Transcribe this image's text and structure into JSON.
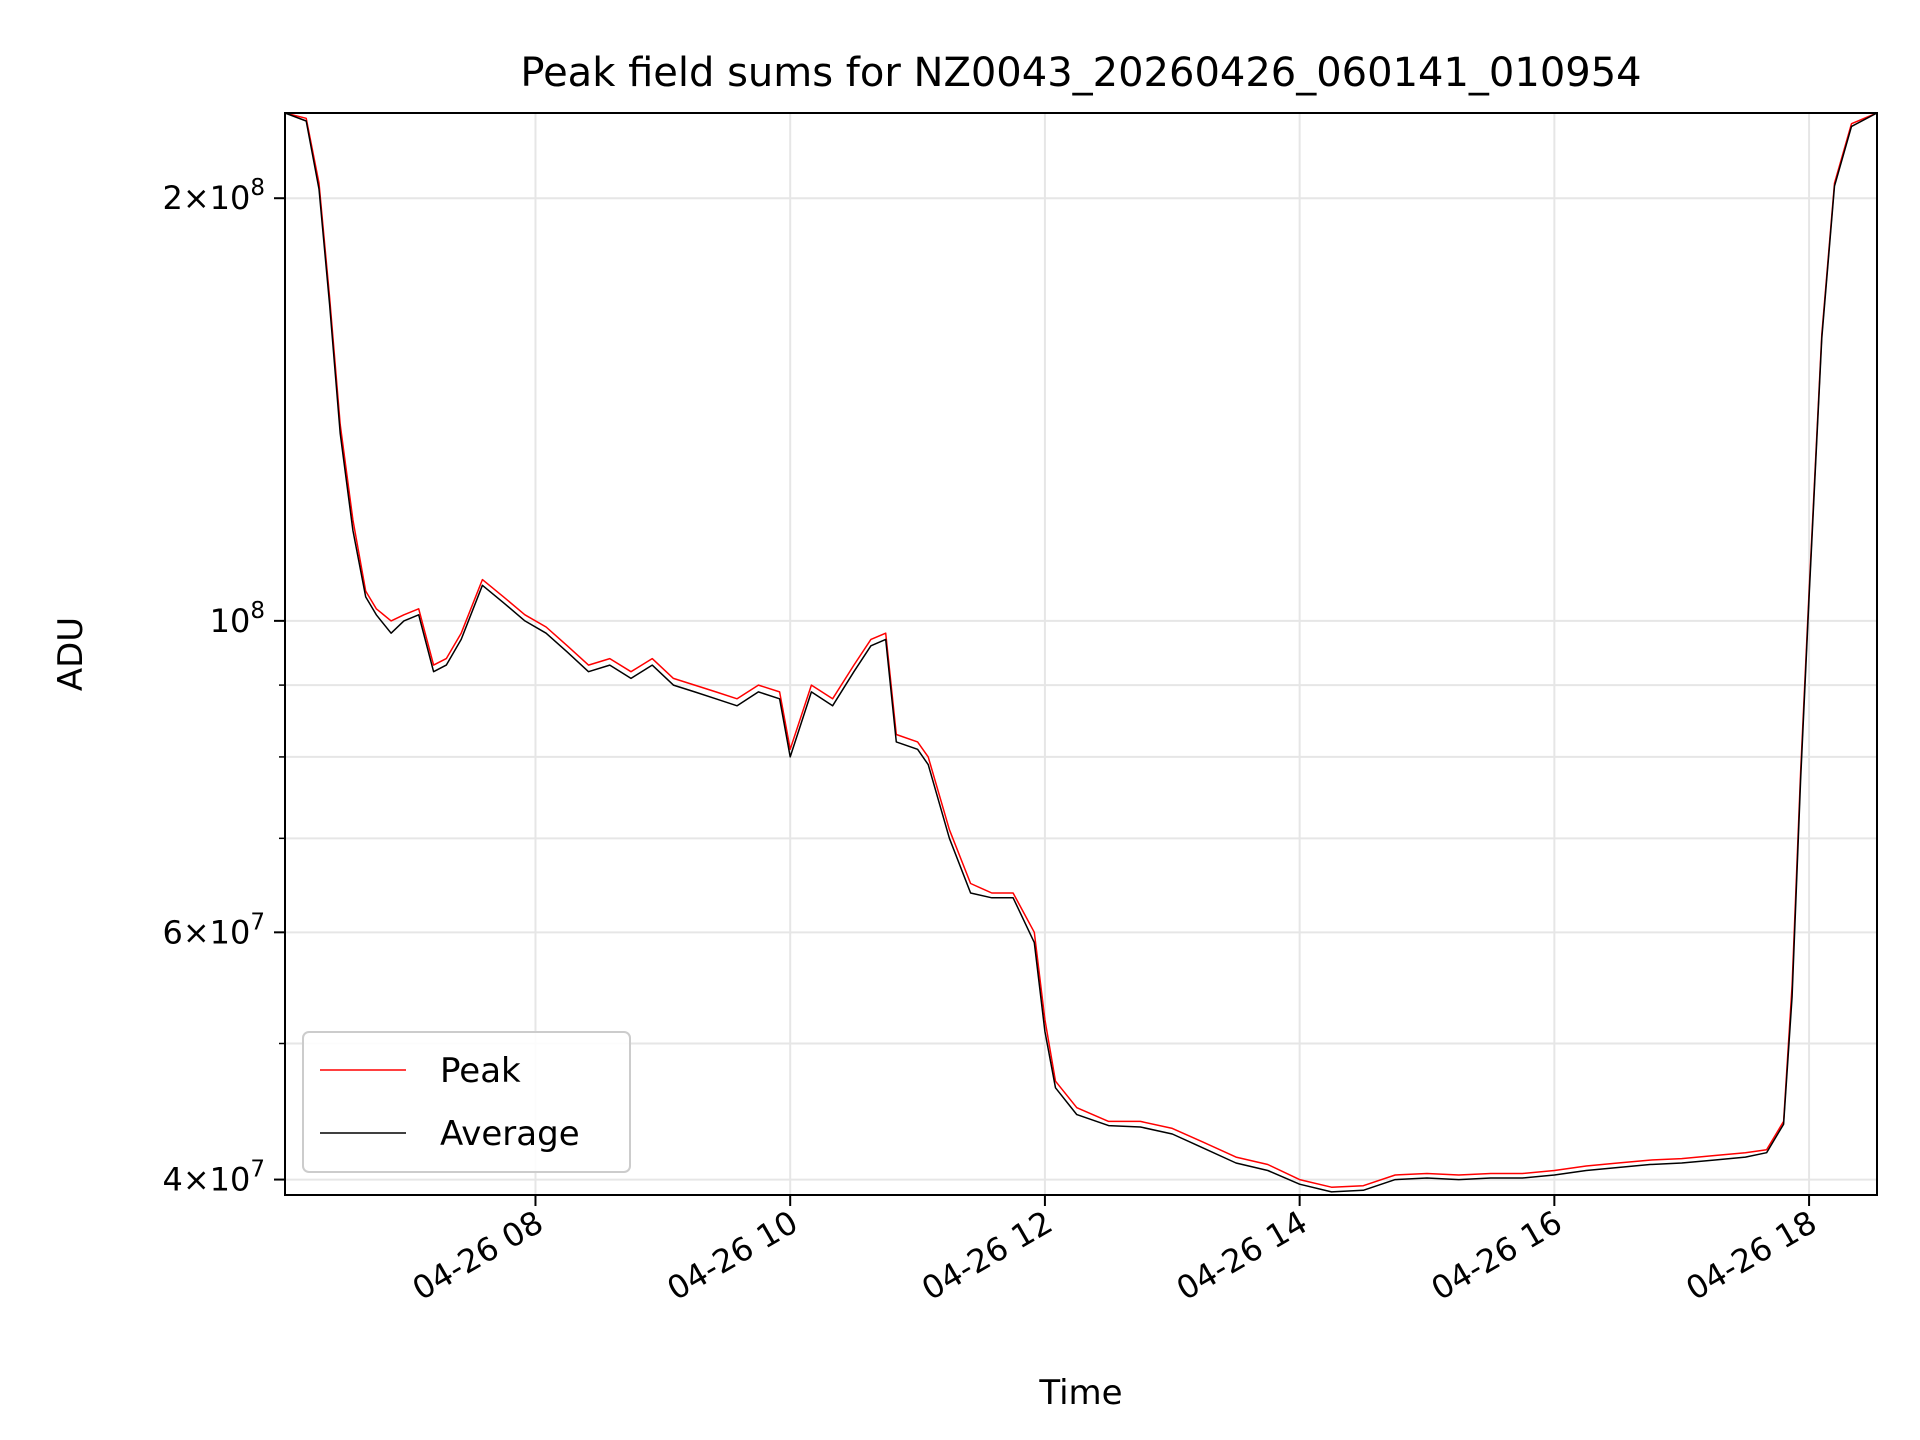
{
  "chart_data": {
    "type": "line",
    "title": "Peak field sums for NZ0043_20260426_060141_010954",
    "xlabel": "Time",
    "ylabel": "ADU",
    "yscale": "log",
    "xlim": [
      "2026-04-26 06:02",
      "2026-04-26 18:32"
    ],
    "ylim": [
      39000000,
      230000000
    ],
    "grid": true,
    "legend_position": "lower-left",
    "x_ticks": [
      {
        "value": "2026-04-26 08:00",
        "label": "04-26 08"
      },
      {
        "value": "2026-04-26 10:00",
        "label": "04-26 10"
      },
      {
        "value": "2026-04-26 12:00",
        "label": "04-26 12"
      },
      {
        "value": "2026-04-26 14:00",
        "label": "04-26 14"
      },
      {
        "value": "2026-04-26 16:00",
        "label": "04-26 16"
      },
      {
        "value": "2026-04-26 18:00",
        "label": "04-26 18"
      }
    ],
    "y_ticks": [
      {
        "value": 40000000,
        "mant": "4",
        "exp": "7"
      },
      {
        "value": 60000000,
        "mant": "6",
        "exp": "7"
      },
      {
        "value": 100000000,
        "mant": "",
        "exp": "8"
      },
      {
        "value": 200000000,
        "mant": "2",
        "exp": "8"
      }
    ],
    "y_minor_ticks": [
      50000000,
      70000000,
      80000000,
      90000000
    ],
    "series": [
      {
        "name": "Peak",
        "color": "#ff0000",
        "x": [
          "2026-04-26 06:02",
          "2026-04-26 06:12",
          "2026-04-26 06:18",
          "2026-04-26 06:23",
          "2026-04-26 06:28",
          "2026-04-26 06:34",
          "2026-04-26 06:40",
          "2026-04-26 06:45",
          "2026-04-26 06:52",
          "2026-04-26 06:58",
          "2026-04-26 07:05",
          "2026-04-26 07:12",
          "2026-04-26 07:18",
          "2026-04-26 07:25",
          "2026-04-26 07:35",
          "2026-04-26 07:45",
          "2026-04-26 07:55",
          "2026-04-26 08:05",
          "2026-04-26 08:15",
          "2026-04-26 08:25",
          "2026-04-26 08:35",
          "2026-04-26 08:45",
          "2026-04-26 08:55",
          "2026-04-26 09:05",
          "2026-04-26 09:15",
          "2026-04-26 09:25",
          "2026-04-26 09:35",
          "2026-04-26 09:45",
          "2026-04-26 09:55",
          "2026-04-26 10:00",
          "2026-04-26 10:10",
          "2026-04-26 10:20",
          "2026-04-26 10:30",
          "2026-04-26 10:38",
          "2026-04-26 10:45",
          "2026-04-26 10:50",
          "2026-04-26 11:00",
          "2026-04-26 11:05",
          "2026-04-26 11:15",
          "2026-04-26 11:25",
          "2026-04-26 11:35",
          "2026-04-26 11:45",
          "2026-04-26 11:55",
          "2026-04-26 12:00",
          "2026-04-26 12:05",
          "2026-04-26 12:15",
          "2026-04-26 12:30",
          "2026-04-26 12:45",
          "2026-04-26 13:00",
          "2026-04-26 13:15",
          "2026-04-26 13:30",
          "2026-04-26 13:45",
          "2026-04-26 14:00",
          "2026-04-26 14:15",
          "2026-04-26 14:30",
          "2026-04-26 14:45",
          "2026-04-26 15:00",
          "2026-04-26 15:15",
          "2026-04-26 15:30",
          "2026-04-26 15:45",
          "2026-04-26 16:00",
          "2026-04-26 16:15",
          "2026-04-26 16:30",
          "2026-04-26 16:45",
          "2026-04-26 17:00",
          "2026-04-26 17:15",
          "2026-04-26 17:30",
          "2026-04-26 17:40",
          "2026-04-26 17:48",
          "2026-04-26 17:52",
          "2026-04-26 17:56",
          "2026-04-26 18:00",
          "2026-04-26 18:06",
          "2026-04-26 18:12",
          "2026-04-26 18:20",
          "2026-04-26 18:32"
        ],
        "values": [
          230000000,
          228000000,
          205000000,
          170000000,
          138000000,
          118000000,
          105000000,
          102000000,
          100000000,
          101000000,
          102000000,
          93000000,
          94000000,
          98000000,
          107000000,
          104000000,
          101000000,
          99000000,
          96000000,
          93000000,
          94000000,
          92000000,
          94000000,
          91000000,
          90000000,
          89000000,
          88000000,
          90000000,
          89000000,
          81000000,
          90000000,
          88000000,
          93000000,
          97000000,
          98000000,
          83000000,
          82000000,
          80000000,
          71000000,
          65000000,
          64000000,
          64000000,
          60000000,
          52000000,
          47000000,
          45000000,
          44000000,
          44000000,
          43500000,
          42500000,
          41500000,
          41000000,
          40000000,
          39500000,
          39600000,
          40300000,
          40400000,
          40300000,
          40400000,
          40400000,
          40600000,
          40900000,
          41100000,
          41300000,
          41400000,
          41600000,
          41800000,
          42000000,
          44000000,
          55000000,
          78000000,
          105000000,
          160000000,
          205000000,
          226000000,
          230000000
        ]
      },
      {
        "name": "Average",
        "color": "#000000",
        "x": [
          "2026-04-26 06:02",
          "2026-04-26 06:12",
          "2026-04-26 06:18",
          "2026-04-26 06:23",
          "2026-04-26 06:28",
          "2026-04-26 06:34",
          "2026-04-26 06:40",
          "2026-04-26 06:45",
          "2026-04-26 06:52",
          "2026-04-26 06:58",
          "2026-04-26 07:05",
          "2026-04-26 07:12",
          "2026-04-26 07:18",
          "2026-04-26 07:25",
          "2026-04-26 07:35",
          "2026-04-26 07:45",
          "2026-04-26 07:55",
          "2026-04-26 08:05",
          "2026-04-26 08:15",
          "2026-04-26 08:25",
          "2026-04-26 08:35",
          "2026-04-26 08:45",
          "2026-04-26 08:55",
          "2026-04-26 09:05",
          "2026-04-26 09:15",
          "2026-04-26 09:25",
          "2026-04-26 09:35",
          "2026-04-26 09:45",
          "2026-04-26 09:55",
          "2026-04-26 10:00",
          "2026-04-26 10:10",
          "2026-04-26 10:20",
          "2026-04-26 10:30",
          "2026-04-26 10:38",
          "2026-04-26 10:45",
          "2026-04-26 10:50",
          "2026-04-26 11:00",
          "2026-04-26 11:05",
          "2026-04-26 11:15",
          "2026-04-26 11:25",
          "2026-04-26 11:35",
          "2026-04-26 11:45",
          "2026-04-26 11:55",
          "2026-04-26 12:00",
          "2026-04-26 12:05",
          "2026-04-26 12:15",
          "2026-04-26 12:30",
          "2026-04-26 12:45",
          "2026-04-26 13:00",
          "2026-04-26 13:15",
          "2026-04-26 13:30",
          "2026-04-26 13:45",
          "2026-04-26 14:00",
          "2026-04-26 14:15",
          "2026-04-26 14:30",
          "2026-04-26 14:45",
          "2026-04-26 15:00",
          "2026-04-26 15:15",
          "2026-04-26 15:30",
          "2026-04-26 15:45",
          "2026-04-26 16:00",
          "2026-04-26 16:15",
          "2026-04-26 16:30",
          "2026-04-26 16:45",
          "2026-04-26 17:00",
          "2026-04-26 17:15",
          "2026-04-26 17:30",
          "2026-04-26 17:40",
          "2026-04-26 17:48",
          "2026-04-26 17:52",
          "2026-04-26 17:56",
          "2026-04-26 18:00",
          "2026-04-26 18:06",
          "2026-04-26 18:12",
          "2026-04-26 18:20",
          "2026-04-26 18:32"
        ],
        "values": [
          230000000,
          227000000,
          203000000,
          168000000,
          136000000,
          116000000,
          104000000,
          101000000,
          98000000,
          100000000,
          101000000,
          92000000,
          93000000,
          97000000,
          106000000,
          103000000,
          100000000,
          98000000,
          95000000,
          92000000,
          93000000,
          91000000,
          93000000,
          90000000,
          89000000,
          88000000,
          87000000,
          89000000,
          88000000,
          80000000,
          89000000,
          87000000,
          92000000,
          96000000,
          97000000,
          82000000,
          81000000,
          79000000,
          70000000,
          64000000,
          63500000,
          63500000,
          59000000,
          51000000,
          46500000,
          44500000,
          43700000,
          43600000,
          43100000,
          42100000,
          41100000,
          40600000,
          39700000,
          39200000,
          39300000,
          40000000,
          40100000,
          40000000,
          40100000,
          40100000,
          40300000,
          40600000,
          40800000,
          41000000,
          41100000,
          41300000,
          41500000,
          41800000,
          43800000,
          54000000,
          77000000,
          104000000,
          159000000,
          204000000,
          225000000,
          230000000
        ]
      }
    ]
  }
}
